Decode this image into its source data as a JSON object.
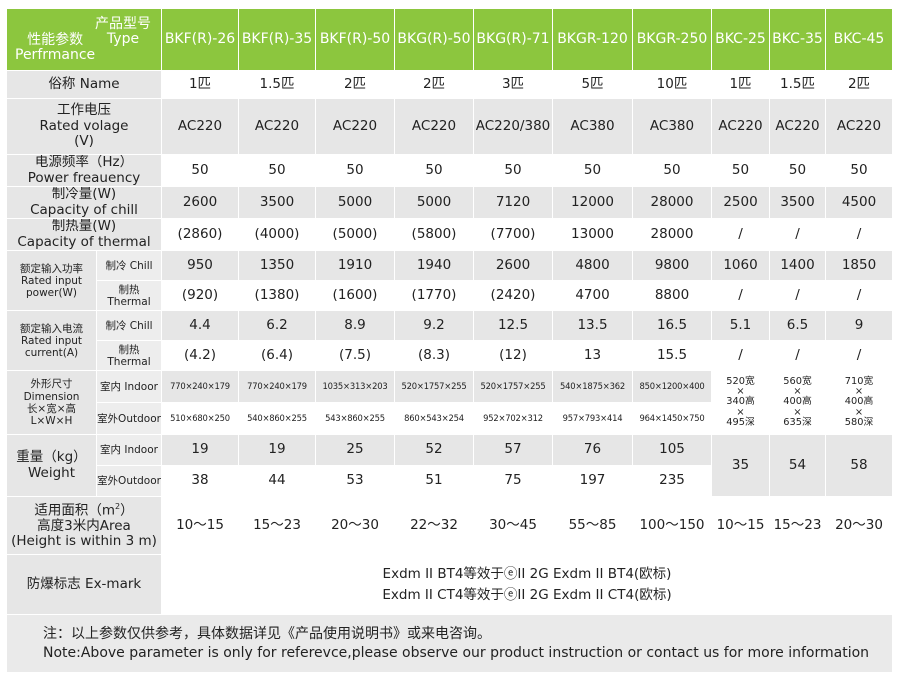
{
  "header": {
    "type_cn": "产品型号",
    "type_en": "Type",
    "perf_cn": "性能参数",
    "perf_en": "Perfrmance",
    "models": [
      "BKF(R)-26",
      "BKF(R)-35",
      "BKF(R)-50",
      "BKG(R)-50",
      "BKG(R)-71",
      "BKGR-120",
      "BKGR-250",
      "BKC-25",
      "BKC-35",
      "BKC-45"
    ]
  },
  "rows": {
    "name": {
      "label": "俗称 Name",
      "values": [
        "1匹",
        "1.5匹",
        "2匹",
        "2匹",
        "3匹",
        "5匹",
        "10匹",
        "1匹",
        "1.5匹",
        "2匹"
      ]
    },
    "voltage": {
      "label_cn": "工作电压",
      "label_en": "Rated volage",
      "label_unit": "(V)",
      "values": [
        "AC220",
        "AC220",
        "AC220",
        "AC220",
        "AC220/380",
        "AC380",
        "AC380",
        "AC220",
        "AC220",
        "AC220"
      ]
    },
    "frequency": {
      "label_cn": "电源频率（Hz）",
      "label_en": "Power freauency",
      "values": [
        "50",
        "50",
        "50",
        "50",
        "50",
        "50",
        "50",
        "50",
        "50",
        "50"
      ]
    },
    "chill": {
      "label_cn": "制冷量(W)",
      "label_en": "Capacity of chill",
      "values": [
        "2600",
        "3500",
        "5000",
        "5000",
        "7120",
        "12000",
        "28000",
        "2500",
        "3500",
        "4500"
      ]
    },
    "thermal": {
      "label_cn": "制热量(W)",
      "label_en": "Capacity of thermal",
      "values": [
        "(2860)",
        "(4000)",
        "(5000)",
        "(5800)",
        "(7700)",
        "13000",
        "28000",
        "/",
        "/",
        "/"
      ]
    },
    "power": {
      "label_cn": "额定输入功率",
      "label_en1": "Rated input",
      "label_en2": "power(W)",
      "chill_label": "制冷 Chill",
      "thermal_label": "制热 Thermal",
      "chill": [
        "950",
        "1350",
        "1910",
        "1940",
        "2600",
        "4800",
        "9800",
        "1060",
        "1400",
        "1850"
      ],
      "thermal": [
        "(920)",
        "(1380)",
        "(1600)",
        "(1770)",
        "(2420)",
        "4700",
        "8800",
        "/",
        "/",
        "/"
      ]
    },
    "current": {
      "label_cn": "额定输入电流",
      "label_en1": "Rated input",
      "label_en2": "current(A)",
      "chill_label": "制冷 Chill",
      "thermal_label": "制热 Thermal",
      "chill": [
        "4.4",
        "6.2",
        "8.9",
        "9.2",
        "12.5",
        "13.5",
        "16.5",
        "5.1",
        "6.5",
        "9"
      ],
      "thermal": [
        "(4.2)",
        "(6.4)",
        "(7.5)",
        "(8.3)",
        "(12)",
        "13",
        "15.5",
        "/",
        "/",
        "/"
      ]
    },
    "dimension": {
      "label_cn": "外形尺寸",
      "label_en": "Dimension",
      "label_cn2": "长×宽×高",
      "label_en2": "L×W×H",
      "indoor_label": "室内 Indoor",
      "outdoor_label": "室外Outdoor",
      "indoor": [
        "770×240×179",
        "770×240×179",
        "1035×313×203",
        "520×1757×255",
        "520×1757×255",
        "540×1875×362",
        "850×1200×400"
      ],
      "outdoor": [
        "510×680×250",
        "540×860×255",
        "543×860×255",
        "860×543×254",
        "952×702×312",
        "957×793×414",
        "964×1450×750"
      ],
      "bkc": [
        [
          "520宽",
          "×",
          "340高",
          "×",
          "495深"
        ],
        [
          "560宽",
          "×",
          "400高",
          "×",
          "635深"
        ],
        [
          "710宽",
          "×",
          "400高",
          "×",
          "580深"
        ]
      ]
    },
    "weight": {
      "label_cn": "重量（kg）",
      "label_en": "Weight",
      "indoor_label": "室内 Indoor",
      "outdoor_label": "室外Outdoor",
      "indoor": [
        "19",
        "19",
        "25",
        "52",
        "57",
        "76",
        "105"
      ],
      "outdoor": [
        "38",
        "44",
        "53",
        "51",
        "75",
        "197",
        "235"
      ],
      "bkc": [
        "35",
        "54",
        "58"
      ]
    },
    "area": {
      "label_l1_pre": "适用面积（m",
      "label_l1_sup": "2",
      "label_l1_post": "）",
      "label_l2": "高度3米内Area",
      "label_l3": "(Height is within 3 m)",
      "values": [
        "10～15",
        "15～23",
        "20～30",
        "22～32",
        "30～45",
        "55～85",
        "100～150",
        "10～15",
        "15～23",
        "20～30"
      ]
    },
    "exmark": {
      "label": "防爆标志 Ex-mark",
      "line1": "Exdm II BT4等效于ⓔII 2G Exdm II BT4(欧标)",
      "line2": "Exdm II CT4等效于ⓔII 2G Exdm II CT4(欧标)"
    }
  },
  "note": {
    "cn": "注：以上参数仅供参考，具体数据详见《产品使用说明书》或来电咨询。",
    "en": "Note:Above parameter is only for referevce,please observe our product instruction or contact us for more information"
  }
}
